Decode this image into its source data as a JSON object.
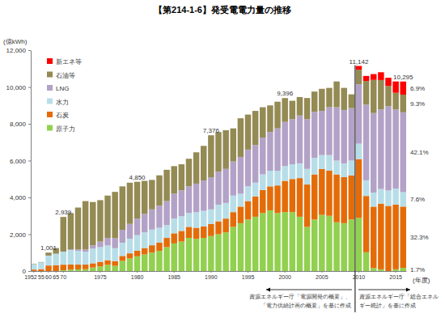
{
  "chart_data": {
    "type": "bar",
    "stacked": true,
    "title": "【第214-1-6】発受電電力量の推移",
    "y_label": "(億kWh)",
    "x_label": "(年度)",
    "legend": "top-left",
    "grid": false,
    "ylim": [
      0,
      12000
    ],
    "yticks": [
      0,
      {
        "value": 2000,
        "label": "2,000"
      },
      {
        "value": 4000,
        "label": "4,000"
      },
      {
        "value": 6000,
        "label": "6,000"
      },
      {
        "value": 8000,
        "label": "8,000"
      },
      {
        "value": 10000,
        "label": "10,000"
      },
      {
        "value": 12000,
        "label": "12,000"
      }
    ],
    "categories": [
      "1952",
      "55",
      "60",
      "65",
      "70",
      null,
      null,
      null,
      null,
      "1975",
      null,
      null,
      null,
      null,
      "1980",
      null,
      null,
      null,
      null,
      "1985",
      null,
      null,
      null,
      null,
      "1990",
      null,
      null,
      null,
      null,
      "1995",
      null,
      null,
      null,
      null,
      "2000",
      null,
      null,
      null,
      null,
      "2005",
      null,
      null,
      null,
      null,
      "2010",
      null,
      null,
      null,
      null,
      "2015",
      null
    ],
    "series": [
      {
        "name": "原子力",
        "color": "#92d050",
        "share_label": "1.7%",
        "values": [
          0,
          0,
          0,
          0,
          46,
          80,
          90,
          100,
          190,
          250,
          340,
          280,
          550,
          680,
          800,
          900,
          1000,
          1100,
          1300,
          1500,
          1600,
          1800,
          1750,
          1800,
          1900,
          2000,
          2100,
          2400,
          2600,
          2800,
          2950,
          3150,
          3300,
          3150,
          3200,
          3200,
          2950,
          2400,
          2800,
          3050,
          3000,
          2650,
          2600,
          2800,
          2882,
          1018,
          159,
          93,
          0,
          94,
          175
        ]
      },
      {
        "name": "石炭",
        "color": "#e36c09",
        "share_label": "32.3%",
        "values": [
          80,
          100,
          300,
          320,
          300,
          280,
          260,
          250,
          230,
          250,
          250,
          260,
          270,
          280,
          300,
          350,
          400,
          450,
          500,
          550,
          580,
          600,
          600,
          620,
          650,
          700,
          750,
          800,
          900,
          1000,
          1100,
          1250,
          1300,
          1500,
          1700,
          1800,
          2100,
          2300,
          2450,
          2500,
          2450,
          2600,
          2500,
          2400,
          3199,
          3061,
          3340,
          3570,
          3540,
          3520,
          3327
        ]
      },
      {
        "name": "水力",
        "color": "#b7dee8",
        "share_label": "7.6%",
        "values": [
          300,
          370,
          540,
          620,
          700,
          780,
          750,
          700,
          800,
          800,
          800,
          700,
          720,
          800,
          850,
          850,
          850,
          800,
          700,
          800,
          800,
          750,
          850,
          850,
          800,
          900,
          850,
          900,
          700,
          800,
          750,
          850,
          850,
          800,
          800,
          800,
          800,
          850,
          900,
          750,
          850,
          750,
          750,
          800,
          838,
          849,
          765,
          794,
          835,
          870,
          784
        ]
      },
      {
        "name": "LNG",
        "color": "#b3a2c7",
        "share_label": "42.1%",
        "values": [
          0,
          0,
          0,
          0,
          10,
          40,
          70,
          120,
          180,
          300,
          400,
          550,
          700,
          800,
          900,
          1000,
          1100,
          1200,
          1300,
          1350,
          1400,
          1450,
          1550,
          1650,
          1750,
          1800,
          1850,
          1850,
          2000,
          2000,
          2050,
          2000,
          2100,
          2300,
          2400,
          2450,
          2600,
          2700,
          2500,
          2400,
          2600,
          2900,
          2900,
          2850,
          3224,
          4113,
          4320,
          4320,
          4580,
          4300,
          4337
        ]
      },
      {
        "name": "石油等",
        "color": "#948a54",
        "share_label": "9.3%",
        "values": [
          20,
          20,
          161,
          310,
          1883,
          1970,
          2280,
          2630,
          2350,
          2250,
          2310,
          2510,
          2360,
          2240,
          2000,
          1800,
          1600,
          1650,
          1700,
          1500,
          1420,
          1500,
          1700,
          1880,
          2276,
          2150,
          2100,
          1800,
          2100,
          1900,
          1850,
          1650,
          1450,
          1450,
          1296,
          1000,
          1000,
          1150,
          1100,
          1200,
          1050,
          1400,
          1200,
          750,
          800,
          1283,
          1800,
          1600,
          1100,
          900,
          960
        ]
      },
      {
        "name": "新エネ等",
        "color": "#ff0000",
        "share_label": "6.9%",
        "values": [
          null,
          null,
          null,
          null,
          null,
          null,
          null,
          null,
          null,
          null,
          null,
          null,
          null,
          null,
          null,
          null,
          null,
          null,
          null,
          null,
          null,
          null,
          null,
          null,
          null,
          null,
          null,
          null,
          null,
          null,
          null,
          null,
          null,
          null,
          null,
          null,
          null,
          null,
          null,
          null,
          null,
          null,
          null,
          null,
          199,
          276,
          316,
          423,
          445,
          616,
          712
        ]
      }
    ],
    "total_labels": [
      null,
      null,
      "1,001",
      null,
      "2,939",
      null,
      null,
      null,
      null,
      null,
      null,
      null,
      null,
      null,
      "4,850",
      null,
      null,
      null,
      null,
      null,
      null,
      null,
      null,
      null,
      "7,376",
      null,
      null,
      null,
      null,
      null,
      null,
      null,
      null,
      null,
      "9,396",
      null,
      null,
      null,
      null,
      null,
      null,
      null,
      null,
      null,
      "11,142",
      null,
      null,
      null,
      null,
      null,
      "10,295"
    ],
    "source_notes": [
      {
        "from": 0,
        "text": [
          "資源エネルギー庁「電源開発の概要」、",
          "「電力供給計画の概要」を基に作成"
        ]
      },
      {
        "from": 44,
        "text": [
          "資源エネルギー庁「総合エネル",
          "ギー統計」を基に作成"
        ]
      }
    ]
  }
}
